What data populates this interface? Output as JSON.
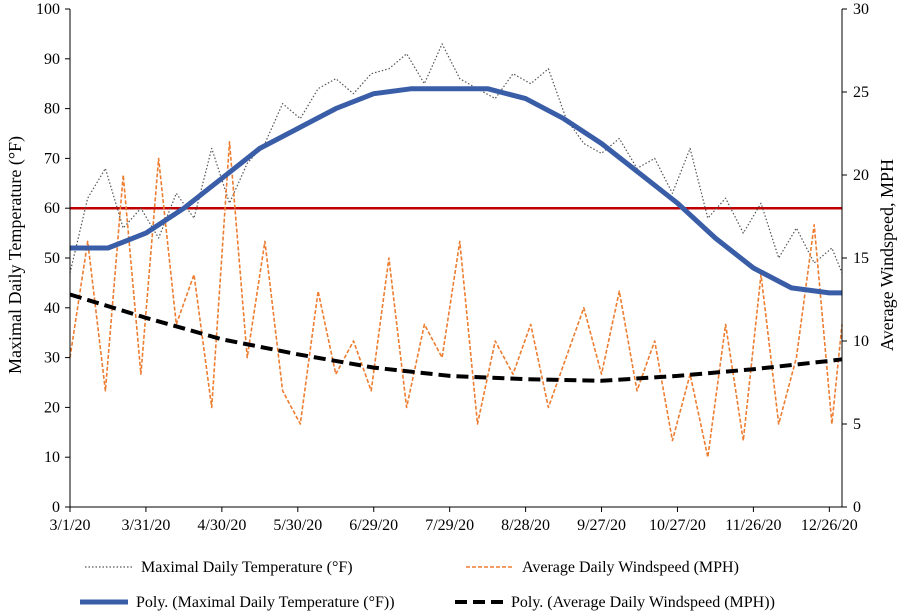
{
  "chart_data": {
    "type": "line",
    "xlabel": "",
    "ylabel": "Maximal Daily Temperature (°F)",
    "y2label": "Average Windspeed, MPH",
    "x_ticks": [
      "3/1/20",
      "3/31/20",
      "4/30/20",
      "5/30/20",
      "6/29/20",
      "7/29/20",
      "8/28/20",
      "9/27/20",
      "10/27/20",
      "11/26/20",
      "12/26/20"
    ],
    "y_ticks": [
      "0",
      "10",
      "20",
      "30",
      "40",
      "50",
      "60",
      "70",
      "80",
      "90",
      "100"
    ],
    "y2_ticks": [
      "0",
      "5",
      "10",
      "15",
      "20",
      "25",
      "30"
    ],
    "xlim": [
      "2020-03-01",
      "2020-12-31"
    ],
    "ylim": [
      0,
      100
    ],
    "y2lim": [
      0,
      30
    ],
    "grid": false,
    "legend_position": "bottom",
    "threshold_line": {
      "axis": "left",
      "value": 60,
      "color": "#c00000"
    },
    "legend": [
      "Maximal Daily Temperature (°F)",
      "Average Daily Windspeed (MPH)",
      "Poly. (Maximal Daily Temperature (°F))",
      "Poly. (Average Daily Windspeed (MPH))"
    ],
    "series": [
      {
        "name": "Maximal Daily Temperature (°F)",
        "axis": "left",
        "color": "#555555",
        "style": "dotted",
        "x": [
          "2020-03-01",
          "2020-03-08",
          "2020-03-15",
          "2020-03-22",
          "2020-03-29",
          "2020-04-05",
          "2020-04-12",
          "2020-04-19",
          "2020-04-26",
          "2020-05-03",
          "2020-05-10",
          "2020-05-17",
          "2020-05-24",
          "2020-05-31",
          "2020-06-07",
          "2020-06-14",
          "2020-06-21",
          "2020-06-28",
          "2020-07-05",
          "2020-07-12",
          "2020-07-19",
          "2020-07-26",
          "2020-08-02",
          "2020-08-09",
          "2020-08-16",
          "2020-08-23",
          "2020-08-30",
          "2020-09-06",
          "2020-09-13",
          "2020-09-20",
          "2020-09-27",
          "2020-10-04",
          "2020-10-11",
          "2020-10-18",
          "2020-10-25",
          "2020-11-01",
          "2020-11-08",
          "2020-11-15",
          "2020-11-22",
          "2020-11-29",
          "2020-12-06",
          "2020-12-13",
          "2020-12-20",
          "2020-12-27",
          "2020-12-31"
        ],
        "values": [
          47,
          62,
          68,
          56,
          60,
          54,
          63,
          58,
          72,
          61,
          69,
          73,
          81,
          78,
          84,
          86,
          83,
          87,
          88,
          91,
          85,
          93,
          86,
          84,
          82,
          87,
          85,
          88,
          78,
          73,
          71,
          74,
          68,
          70,
          63,
          72,
          58,
          62,
          55,
          61,
          50,
          56,
          49,
          52,
          47
        ]
      },
      {
        "name": "Average Daily Windspeed (MPH)",
        "axis": "right",
        "color": "#ed7d31",
        "style": "dashed",
        "x": [
          "2020-03-01",
          "2020-03-08",
          "2020-03-15",
          "2020-03-22",
          "2020-03-29",
          "2020-04-05",
          "2020-04-12",
          "2020-04-19",
          "2020-04-26",
          "2020-05-03",
          "2020-05-10",
          "2020-05-17",
          "2020-05-24",
          "2020-05-31",
          "2020-06-07",
          "2020-06-14",
          "2020-06-21",
          "2020-06-28",
          "2020-07-05",
          "2020-07-12",
          "2020-07-19",
          "2020-07-26",
          "2020-08-02",
          "2020-08-09",
          "2020-08-16",
          "2020-08-23",
          "2020-08-30",
          "2020-09-06",
          "2020-09-13",
          "2020-09-20",
          "2020-09-27",
          "2020-10-04",
          "2020-10-11",
          "2020-10-18",
          "2020-10-25",
          "2020-11-01",
          "2020-11-08",
          "2020-11-15",
          "2020-11-22",
          "2020-11-29",
          "2020-12-06",
          "2020-12-13",
          "2020-12-20",
          "2020-12-27",
          "2020-12-31"
        ],
        "values": [
          9,
          16,
          7,
          20,
          8,
          21,
          11,
          14,
          6,
          22,
          9,
          16,
          7,
          5,
          13,
          8,
          10,
          7,
          15,
          6,
          11,
          9,
          16,
          5,
          10,
          8,
          11,
          6,
          9,
          12,
          8,
          13,
          7,
          10,
          4,
          8,
          3,
          11,
          4,
          14,
          5,
          9,
          17,
          5,
          11
        ]
      },
      {
        "name": "Poly. (Maximal Daily Temperature (°F))",
        "axis": "left",
        "color": "#3a5da8",
        "style": "solid",
        "x": [
          "2020-03-01",
          "2020-03-16",
          "2020-03-31",
          "2020-04-15",
          "2020-04-30",
          "2020-05-15",
          "2020-05-30",
          "2020-06-14",
          "2020-06-29",
          "2020-07-14",
          "2020-07-29",
          "2020-08-13",
          "2020-08-28",
          "2020-09-12",
          "2020-09-27",
          "2020-10-12",
          "2020-10-27",
          "2020-11-11",
          "2020-11-26",
          "2020-12-11",
          "2020-12-26",
          "2020-12-31"
        ],
        "values": [
          52,
          52,
          55,
          60,
          66,
          72,
          76,
          80,
          83,
          84,
          84,
          84,
          82,
          78,
          73,
          67,
          61,
          54,
          48,
          44,
          43,
          43
        ]
      },
      {
        "name": "Poly. (Average Daily Windspeed (MPH))",
        "axis": "right",
        "color": "#000000",
        "style": "dashed",
        "x": [
          "2020-03-01",
          "2020-03-31",
          "2020-04-30",
          "2020-05-30",
          "2020-06-29",
          "2020-07-29",
          "2020-08-28",
          "2020-09-27",
          "2020-10-27",
          "2020-11-26",
          "2020-12-26",
          "2020-12-31"
        ],
        "values": [
          12.8,
          11.4,
          10.1,
          9.2,
          8.4,
          7.9,
          7.7,
          7.6,
          7.9,
          8.3,
          8.8,
          8.9
        ]
      }
    ]
  }
}
